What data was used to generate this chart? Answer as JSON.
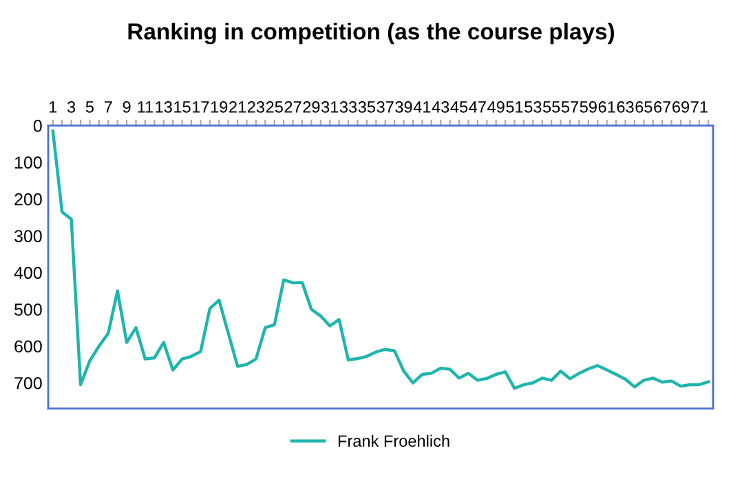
{
  "chart_data": {
    "type": "line",
    "title": "Ranking in competition (as the course plays)",
    "categories": [
      "1",
      null,
      "3",
      null,
      "5",
      null,
      "7",
      null,
      "9",
      null,
      "11",
      null,
      "13",
      null,
      "15",
      null,
      "17",
      null,
      "19",
      null,
      "21",
      null,
      "23",
      null,
      "25",
      null,
      "27",
      null,
      "29",
      null,
      "31",
      null,
      "33",
      null,
      "35",
      null,
      "37",
      null,
      "39",
      null,
      "41",
      null,
      "43",
      null,
      "45",
      null,
      "47",
      null,
      "49",
      null,
      "51",
      null,
      "53",
      null,
      "55",
      null,
      "57",
      null,
      "59",
      null,
      "61",
      null,
      "63",
      null,
      "65",
      null,
      "67",
      null,
      "69",
      null,
      "71",
      null
    ],
    "series": [
      {
        "name": "Frank Froehlich",
        "color": "#1fb5ac",
        "values": [
          15,
          235,
          255,
          705,
          640,
          600,
          565,
          450,
          590,
          550,
          635,
          632,
          590,
          665,
          635,
          628,
          615,
          498,
          475,
          565,
          655,
          650,
          635,
          550,
          542,
          420,
          428,
          427,
          500,
          518,
          545,
          528,
          638,
          634,
          628,
          616,
          609,
          613,
          668,
          700,
          677,
          674,
          660,
          663,
          687,
          674,
          693,
          688,
          677,
          670,
          715,
          705,
          700,
          687,
          693,
          668,
          689,
          674,
          662,
          653,
          665,
          677,
          690,
          711,
          693,
          687,
          698,
          695,
          709,
          705,
          705,
          697
        ]
      }
    ],
    "ylim": [
      770,
      0
    ],
    "yticks": [
      0,
      100,
      200,
      300,
      400,
      500,
      600,
      700
    ],
    "grid": false,
    "legend": "bottom",
    "marker": "none",
    "line_style": "solid"
  }
}
